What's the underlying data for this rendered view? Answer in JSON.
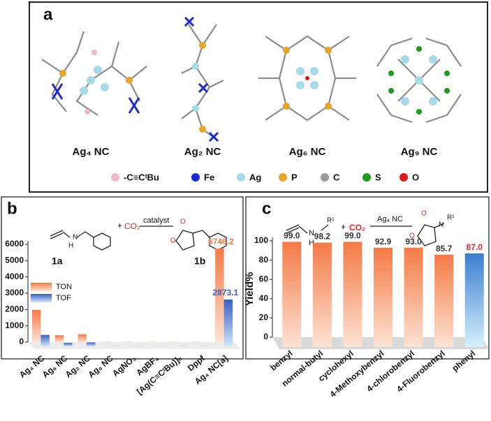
{
  "panel_a": {
    "label": "a",
    "structures": [
      "Ag₄ NC",
      "Ag₂ NC",
      "Ag₆ NC",
      "Ag₉ NC"
    ],
    "legend": [
      {
        "name": "-C≡CᵗBu",
        "color": "#f0b8cc"
      },
      {
        "name": "Fe",
        "color": "#1a2bd0"
      },
      {
        "name": "Ag",
        "color": "#a8dbe8"
      },
      {
        "name": "P",
        "color": "#e8a628"
      },
      {
        "name": "C",
        "color": "#9a9a9a"
      },
      {
        "name": "S",
        "color": "#1e9a1e"
      },
      {
        "name": "O",
        "color": "#e01818"
      }
    ]
  },
  "chart_data": [
    {
      "type": "bar",
      "panel_label": "b",
      "scheme": {
        "reactant": "1a",
        "product": "1b",
        "reagent": "CO₂",
        "catalyst": "catalyst",
        "plus": "+",
        "atom_n": "N",
        "atom_h": "H",
        "atom_o1": "O",
        "atom_o2": "O"
      },
      "categories": [
        "Ag₄ NC",
        "Ag₆ NC",
        "Ag₂ NC",
        "Ag₉ NC",
        "AgNO₃",
        "AgBF₄",
        "[Ag(C≡CᵗBu)]ₙ",
        "Dppf",
        "Ag₄ NC[a]"
      ],
      "series": [
        {
          "name": "TON",
          "color": "#f47a45",
          "values": [
            1980,
            420,
            480,
            10,
            10,
            10,
            10,
            10,
            5746.2
          ],
          "value_labels": [
            null,
            null,
            null,
            null,
            null,
            null,
            null,
            null,
            "5746.2"
          ]
        },
        {
          "name": "TOF",
          "color": "#3b5fc4",
          "values": [
            700,
            210,
            240,
            5,
            5,
            5,
            5,
            5,
            2873.1
          ],
          "value_labels": [
            null,
            null,
            null,
            null,
            null,
            null,
            null,
            null,
            "2873.1"
          ]
        }
      ],
      "ylim": [
        0,
        6000
      ],
      "yticks": [
        0,
        1000,
        2000,
        3000,
        4000,
        5000,
        6000
      ],
      "legend": "upper left"
    },
    {
      "type": "bar",
      "panel_label": "c",
      "ylabel": "Yield%",
      "scheme": {
        "catalyst": "Ag₄ NC",
        "reagent": "CO₂",
        "plus": "+",
        "r1a": "R¹",
        "r1b": "R¹",
        "atom_n": "N",
        "atom_h": "H",
        "atom_o1": "O",
        "atom_o2": "O",
        "atom_n2": "N"
      },
      "categories": [
        "benzyl",
        "normal-butyl",
        "cyclohexyl",
        "4-Methoxybenzyl",
        "4-chlorobenzyl",
        "4-Fluorobenzyl",
        "phenyl"
      ],
      "values": [
        99.0,
        98.2,
        99.0,
        92.9,
        93.0,
        85.7,
        87.0
      ],
      "value_labels": [
        "99.0",
        "98.2",
        "99.0",
        "92.9",
        "93.0",
        "85.7",
        "87.0"
      ],
      "colors": [
        "#f47a45",
        "#f47a45",
        "#f47a45",
        "#f47a45",
        "#f47a45",
        "#f47a45",
        "#3b7fd0"
      ],
      "label_colors": [
        "#333333",
        "#333333",
        "#333333",
        "#333333",
        "#333333",
        "#333333",
        "#e02828"
      ],
      "ylim": [
        0,
        100
      ],
      "yticks": [
        0,
        20,
        40,
        60,
        80,
        100
      ]
    }
  ]
}
